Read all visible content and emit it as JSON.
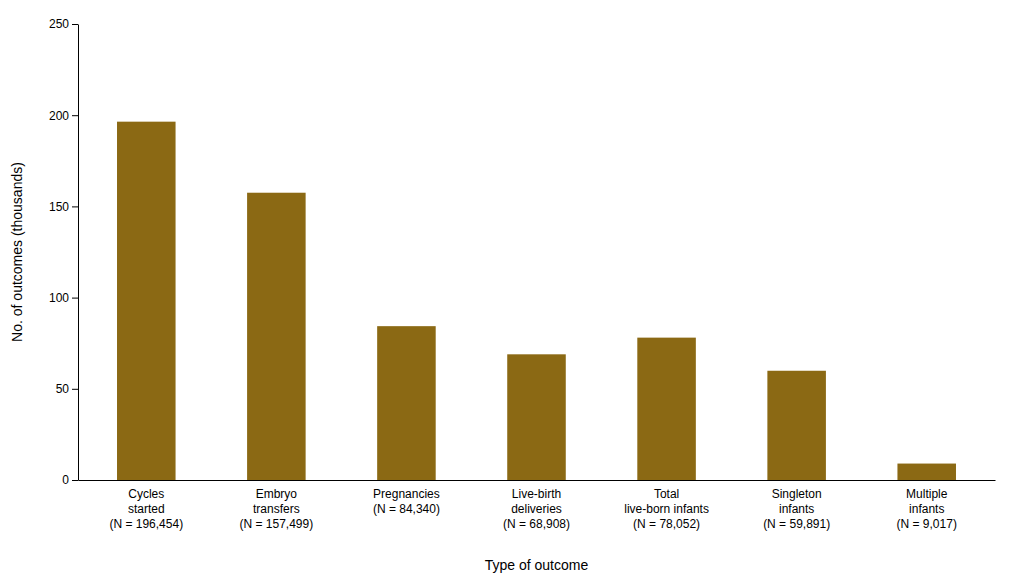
{
  "chart_data": {
    "type": "bar",
    "categories": [
      "Cycles\nstarted\n(N = 196,454)",
      "Embryo\ntransfers\n(N = 157,499)",
      "Pregnancies\n(N = 84,340)",
      "Live-birth\ndeliveries\n(N = 68,908)",
      "Total\nlive-born infants\n(N = 78,052)",
      "Singleton\ninfants\n(N = 59,891)",
      "Multiple\ninfants\n(N = 9,017)"
    ],
    "values": [
      196.454,
      157.499,
      84.34,
      68.908,
      78.052,
      59.891,
      9.017
    ],
    "color": "#8B6914",
    "xlabel": "Type of outcome",
    "ylabel": "No. of outcomes (thousands)",
    "ylim": [
      0,
      250
    ],
    "yticks": [
      0,
      50,
      100,
      150,
      200,
      250
    ],
    "grid": false
  }
}
